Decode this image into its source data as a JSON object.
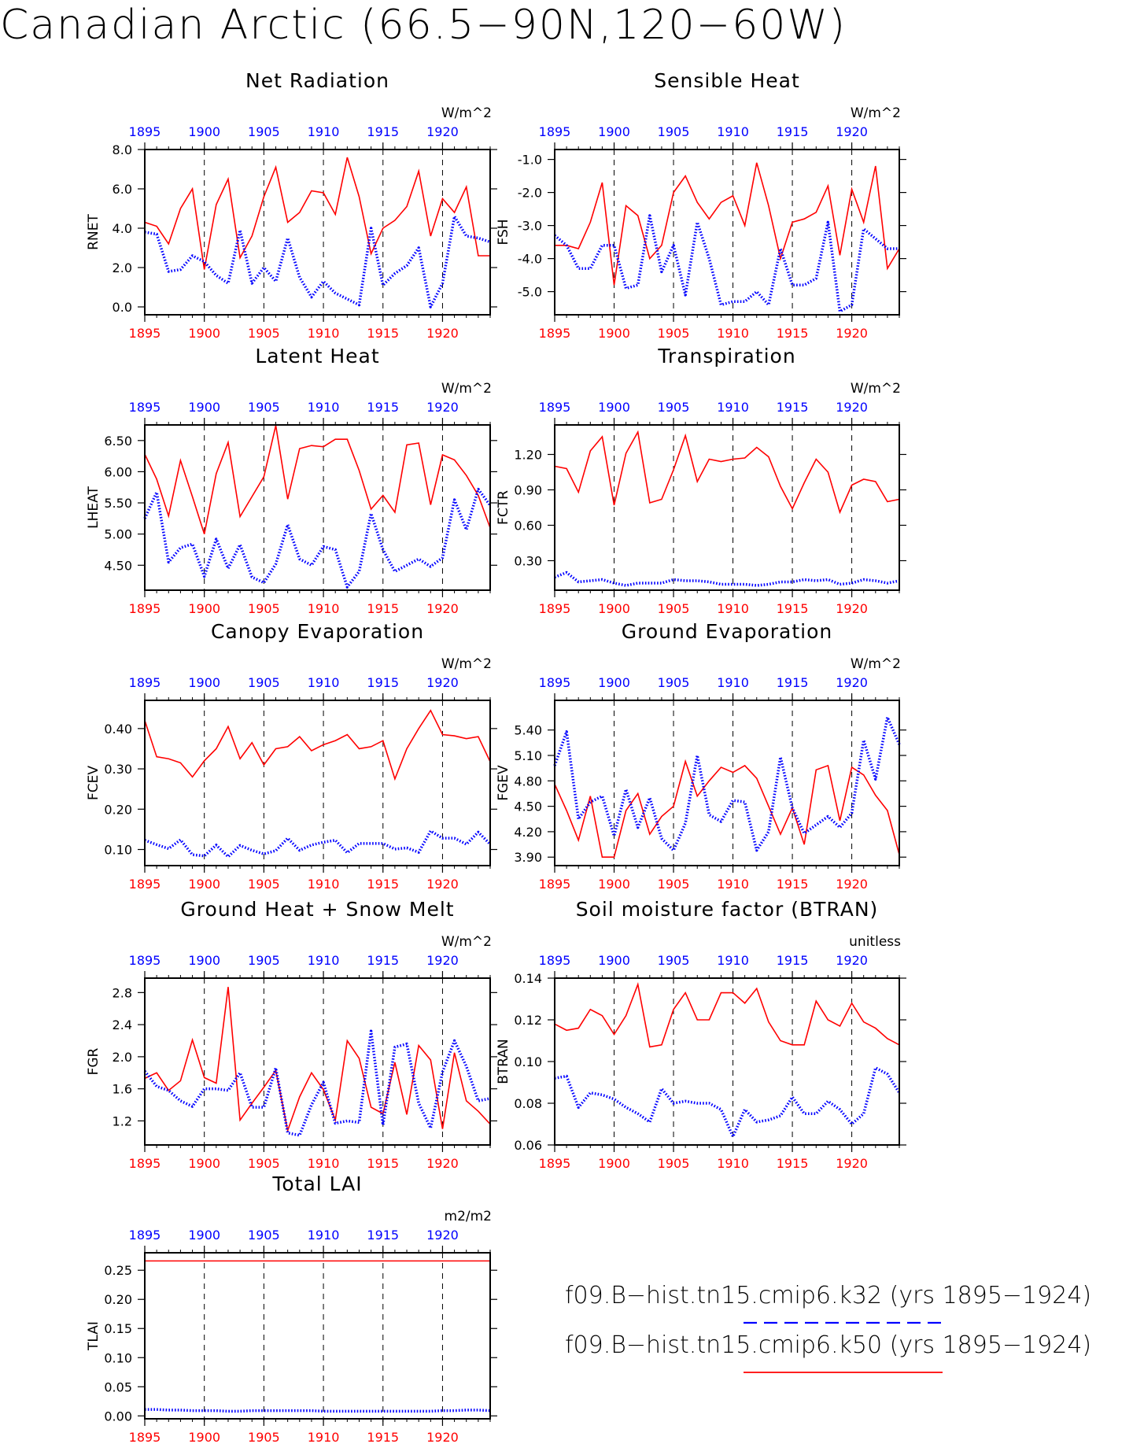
{
  "title": "Canadian Arctic (66.5−90N,120−60W)",
  "legend": [
    {
      "label": "f09.B−hist.tn15.cmip6.k32 (yrs 1895−1924)",
      "color": "#0000ff",
      "dash": true
    },
    {
      "label": "f09.B−hist.tn15.cmip6.k50 (yrs 1895−1924)",
      "color": "#ff0000",
      "dash": false
    }
  ],
  "colors": {
    "k32": "#0000ff",
    "k50": "#ff0000",
    "axis": "#000000"
  },
  "chart_data": [
    {
      "type": "line",
      "title": "Net Radiation",
      "ylabel": "RNET",
      "units": "W/m^2",
      "x": [
        1895,
        1896,
        1897,
        1898,
        1899,
        1900,
        1901,
        1902,
        1903,
        1904,
        1905,
        1906,
        1907,
        1908,
        1909,
        1910,
        1911,
        1912,
        1913,
        1914,
        1915,
        1916,
        1917,
        1918,
        1919,
        1920,
        1921,
        1922,
        1923,
        1924
      ],
      "xlim": [
        1895,
        1924
      ],
      "xticks": [
        1895,
        1900,
        1905,
        1910,
        1915,
        1920
      ],
      "ylim": [
        -0.4,
        8.0
      ],
      "yticks": [
        "0.0",
        "2.0",
        "4.0",
        "6.0",
        "8.0"
      ],
      "series": [
        {
          "name": "k32",
          "values": [
            3.8,
            3.7,
            1.8,
            1.9,
            2.6,
            2.3,
            1.6,
            1.2,
            3.9,
            1.2,
            2.0,
            1.3,
            3.5,
            1.5,
            0.5,
            1.3,
            0.7,
            0.4,
            0.1,
            4.0,
            1.1,
            1.7,
            2.1,
            3.0,
            0.0,
            1.2,
            4.6,
            3.6,
            3.5,
            3.3
          ]
        },
        {
          "name": "k50",
          "values": [
            4.3,
            4.1,
            3.2,
            5.0,
            6.0,
            1.9,
            5.2,
            6.5,
            2.5,
            3.6,
            5.6,
            7.1,
            4.3,
            4.8,
            5.9,
            5.8,
            4.7,
            7.6,
            5.6,
            2.7,
            4.0,
            4.4,
            5.1,
            6.9,
            3.6,
            5.5,
            4.8,
            6.1,
            2.6,
            2.6
          ]
        }
      ]
    },
    {
      "type": "line",
      "title": "Sensible Heat",
      "ylabel": "FSH",
      "units": "W/m^2",
      "x": [
        1895,
        1896,
        1897,
        1898,
        1899,
        1900,
        1901,
        1902,
        1903,
        1904,
        1905,
        1906,
        1907,
        1908,
        1909,
        1910,
        1911,
        1912,
        1913,
        1914,
        1915,
        1916,
        1917,
        1918,
        1919,
        1920,
        1921,
        1922,
        1923,
        1924
      ],
      "xlim": [
        1895,
        1924
      ],
      "xticks": [
        1895,
        1900,
        1905,
        1910,
        1915,
        1920
      ],
      "ylim": [
        -5.7,
        -0.7
      ],
      "yticks": [
        "-5.0",
        "-4.0",
        "-3.0",
        "-2.0",
        "-1.0"
      ],
      "series": [
        {
          "name": "k32",
          "values": [
            -3.3,
            -3.6,
            -4.3,
            -4.3,
            -3.6,
            -3.6,
            -4.9,
            -4.8,
            -2.7,
            -4.4,
            -3.6,
            -5.1,
            -2.9,
            -4.0,
            -5.4,
            -5.3,
            -5.3,
            -5.0,
            -5.4,
            -3.7,
            -4.8,
            -4.8,
            -4.6,
            -2.9,
            -5.6,
            -5.4,
            -3.1,
            -3.4,
            -3.7,
            -3.7
          ]
        },
        {
          "name": "k50",
          "values": [
            -3.6,
            -3.6,
            -3.7,
            -2.9,
            -1.7,
            -4.8,
            -2.4,
            -2.7,
            -4.0,
            -3.6,
            -2.0,
            -1.5,
            -2.3,
            -2.8,
            -2.3,
            -2.1,
            -3.0,
            -1.1,
            -2.4,
            -4.0,
            -2.9,
            -2.8,
            -2.6,
            -1.8,
            -3.9,
            -1.9,
            -2.9,
            -1.2,
            -4.3,
            -3.7
          ]
        }
      ]
    },
    {
      "type": "line",
      "title": "Latent Heat",
      "ylabel": "LHEAT",
      "units": "W/m^2",
      "x": [
        1895,
        1896,
        1897,
        1898,
        1899,
        1900,
        1901,
        1902,
        1903,
        1904,
        1905,
        1906,
        1907,
        1908,
        1909,
        1910,
        1911,
        1912,
        1913,
        1914,
        1915,
        1916,
        1917,
        1918,
        1919,
        1920,
        1921,
        1922,
        1923,
        1924
      ],
      "xlim": [
        1895,
        1924
      ],
      "xticks": [
        1895,
        1900,
        1905,
        1910,
        1915,
        1920
      ],
      "ylim": [
        4.1,
        6.75
      ],
      "yticks": [
        "4.50",
        "5.00",
        "5.50",
        "6.00",
        "6.50"
      ],
      "series": [
        {
          "name": "k32",
          "values": [
            5.25,
            5.67,
            4.55,
            4.78,
            4.84,
            4.32,
            4.92,
            4.45,
            4.83,
            4.31,
            4.22,
            4.52,
            5.15,
            4.6,
            4.5,
            4.8,
            4.75,
            4.15,
            4.4,
            5.33,
            4.75,
            4.4,
            4.5,
            4.6,
            4.48,
            4.62,
            5.55,
            5.07,
            5.72,
            5.46
          ]
        },
        {
          "name": "k50",
          "values": [
            6.28,
            5.88,
            5.29,
            6.18,
            5.6,
            5.0,
            5.97,
            6.47,
            5.28,
            5.6,
            5.92,
            6.74,
            5.56,
            6.37,
            6.42,
            6.4,
            6.52,
            6.52,
            6.02,
            5.4,
            5.62,
            5.35,
            6.43,
            6.46,
            5.47,
            6.27,
            6.19,
            5.94,
            5.62,
            5.1
          ]
        }
      ]
    },
    {
      "type": "line",
      "title": "Transpiration",
      "ylabel": "FCTR",
      "units": "W/m^2",
      "x": [
        1895,
        1896,
        1897,
        1898,
        1899,
        1900,
        1901,
        1902,
        1903,
        1904,
        1905,
        1906,
        1907,
        1908,
        1909,
        1910,
        1911,
        1912,
        1913,
        1914,
        1915,
        1916,
        1917,
        1918,
        1919,
        1920,
        1921,
        1922,
        1923,
        1924
      ],
      "xlim": [
        1895,
        1924
      ],
      "xticks": [
        1895,
        1900,
        1905,
        1910,
        1915,
        1920
      ],
      "ylim": [
        0.05,
        1.45
      ],
      "yticks": [
        "0.30",
        "0.60",
        "0.90",
        "1.20"
      ],
      "series": [
        {
          "name": "k32",
          "values": [
            0.16,
            0.2,
            0.12,
            0.13,
            0.14,
            0.11,
            0.09,
            0.11,
            0.11,
            0.11,
            0.14,
            0.13,
            0.13,
            0.12,
            0.1,
            0.1,
            0.1,
            0.09,
            0.1,
            0.12,
            0.12,
            0.14,
            0.13,
            0.14,
            0.1,
            0.11,
            0.14,
            0.13,
            0.11,
            0.13
          ]
        },
        {
          "name": "k50",
          "values": [
            1.1,
            1.08,
            0.88,
            1.23,
            1.35,
            0.77,
            1.21,
            1.39,
            0.79,
            0.82,
            1.07,
            1.36,
            0.97,
            1.16,
            1.14,
            1.16,
            1.17,
            1.26,
            1.18,
            0.93,
            0.74,
            0.96,
            1.16,
            1.05,
            0.71,
            0.94,
            0.99,
            0.97,
            0.8,
            0.82
          ]
        }
      ]
    },
    {
      "type": "line",
      "title": "Canopy Evaporation",
      "ylabel": "FCEV",
      "units": "W/m^2",
      "x": [
        1895,
        1896,
        1897,
        1898,
        1899,
        1900,
        1901,
        1902,
        1903,
        1904,
        1905,
        1906,
        1907,
        1908,
        1909,
        1910,
        1911,
        1912,
        1913,
        1914,
        1915,
        1916,
        1917,
        1918,
        1919,
        1920,
        1921,
        1922,
        1923,
        1924
      ],
      "xlim": [
        1895,
        1924
      ],
      "xticks": [
        1895,
        1900,
        1905,
        1910,
        1915,
        1920
      ],
      "ylim": [
        0.06,
        0.47
      ],
      "yticks": [
        "0.10",
        "0.20",
        "0.30",
        "0.40"
      ],
      "series": [
        {
          "name": "k32",
          "values": [
            0.123,
            0.112,
            0.102,
            0.124,
            0.087,
            0.084,
            0.111,
            0.082,
            0.11,
            0.098,
            0.089,
            0.097,
            0.128,
            0.098,
            0.111,
            0.118,
            0.123,
            0.092,
            0.115,
            0.115,
            0.115,
            0.101,
            0.104,
            0.093,
            0.146,
            0.128,
            0.128,
            0.113,
            0.143,
            0.113
          ]
        },
        {
          "name": "k50",
          "values": [
            0.42,
            0.33,
            0.325,
            0.315,
            0.28,
            0.32,
            0.35,
            0.405,
            0.325,
            0.365,
            0.31,
            0.35,
            0.355,
            0.38,
            0.345,
            0.36,
            0.37,
            0.385,
            0.35,
            0.355,
            0.37,
            0.275,
            0.35,
            0.4,
            0.445,
            0.385,
            0.382,
            0.375,
            0.38,
            0.318
          ]
        }
      ]
    },
    {
      "type": "line",
      "title": "Ground Evaporation",
      "ylabel": "FGEV",
      "units": "W/m^2",
      "x": [
        1895,
        1896,
        1897,
        1898,
        1899,
        1900,
        1901,
        1902,
        1903,
        1904,
        1905,
        1906,
        1907,
        1908,
        1909,
        1910,
        1911,
        1912,
        1913,
        1914,
        1915,
        1916,
        1917,
        1918,
        1919,
        1920,
        1921,
        1922,
        1923,
        1924
      ],
      "xlim": [
        1895,
        1924
      ],
      "xticks": [
        1895,
        1900,
        1905,
        1910,
        1915,
        1920
      ],
      "ylim": [
        3.8,
        5.75
      ],
      "yticks": [
        "3.90",
        "4.20",
        "4.50",
        "4.80",
        "5.10",
        "5.40"
      ],
      "series": [
        {
          "name": "k32",
          "values": [
            4.98,
            5.38,
            4.35,
            4.55,
            4.62,
            4.15,
            4.7,
            4.25,
            4.6,
            4.12,
            3.98,
            4.3,
            5.1,
            4.4,
            4.32,
            4.57,
            4.55,
            3.98,
            4.2,
            5.08,
            4.48,
            4.18,
            4.28,
            4.38,
            4.25,
            4.42,
            5.28,
            4.82,
            5.55,
            5.23
          ]
        },
        {
          "name": "k50",
          "values": [
            4.76,
            4.45,
            4.1,
            4.62,
            3.9,
            3.9,
            4.45,
            4.65,
            4.17,
            4.38,
            4.5,
            5.03,
            4.62,
            4.8,
            4.96,
            4.9,
            4.98,
            4.83,
            4.5,
            4.17,
            4.48,
            4.05,
            4.93,
            4.98,
            4.33,
            4.96,
            4.87,
            4.63,
            4.45,
            3.93
          ]
        }
      ]
    },
    {
      "type": "line",
      "title": "Ground Heat + Snow Melt",
      "ylabel": "FGR",
      "units": "W/m^2",
      "x": [
        1895,
        1896,
        1897,
        1898,
        1899,
        1900,
        1901,
        1902,
        1903,
        1904,
        1905,
        1906,
        1907,
        1908,
        1909,
        1910,
        1911,
        1912,
        1913,
        1914,
        1915,
        1916,
        1917,
        1918,
        1919,
        1920,
        1921,
        1922,
        1923,
        1924
      ],
      "xlim": [
        1895,
        1924
      ],
      "xticks": [
        1895,
        1900,
        1905,
        1910,
        1915,
        1920
      ],
      "ylim": [
        0.9,
        2.98
      ],
      "yticks": [
        "1.2",
        "1.6",
        "2.0",
        "2.4",
        "2.8"
      ],
      "series": [
        {
          "name": "k32",
          "values": [
            1.82,
            1.63,
            1.58,
            1.45,
            1.38,
            1.6,
            1.6,
            1.58,
            1.8,
            1.37,
            1.37,
            1.86,
            1.05,
            1.02,
            1.4,
            1.68,
            1.17,
            1.2,
            1.18,
            2.32,
            1.15,
            2.12,
            2.16,
            1.42,
            1.11,
            1.81,
            2.2,
            1.88,
            1.45,
            1.48
          ]
        },
        {
          "name": "k50",
          "values": [
            1.73,
            1.8,
            1.58,
            1.7,
            2.21,
            1.74,
            1.67,
            2.87,
            1.21,
            1.42,
            1.62,
            1.83,
            1.08,
            1.5,
            1.8,
            1.59,
            1.21,
            2.2,
            1.98,
            1.37,
            1.29,
            1.93,
            1.28,
            2.14,
            1.96,
            1.1,
            2.05,
            1.45,
            1.32,
            1.16
          ]
        }
      ]
    },
    {
      "type": "line",
      "title": "Soil moisture factor (BTRAN)",
      "ylabel": "BTRAN",
      "units": "unitless",
      "x": [
        1895,
        1896,
        1897,
        1898,
        1899,
        1900,
        1901,
        1902,
        1903,
        1904,
        1905,
        1906,
        1907,
        1908,
        1909,
        1910,
        1911,
        1912,
        1913,
        1914,
        1915,
        1916,
        1917,
        1918,
        1919,
        1920,
        1921,
        1922,
        1923,
        1924
      ],
      "xlim": [
        1895,
        1924
      ],
      "xticks": [
        1895,
        1900,
        1905,
        1910,
        1915,
        1920
      ],
      "ylim": [
        0.06,
        0.14
      ],
      "yticks": [
        "0.06",
        "0.08",
        "0.10",
        "0.12",
        "0.14"
      ],
      "series": [
        {
          "name": "k32",
          "values": [
            0.092,
            0.093,
            0.078,
            0.085,
            0.084,
            0.082,
            0.078,
            0.075,
            0.071,
            0.087,
            0.08,
            0.081,
            0.08,
            0.08,
            0.077,
            0.064,
            0.077,
            0.071,
            0.072,
            0.074,
            0.083,
            0.075,
            0.075,
            0.081,
            0.077,
            0.07,
            0.075,
            0.097,
            0.094,
            0.085
          ]
        },
        {
          "name": "k50",
          "values": [
            0.118,
            0.115,
            0.116,
            0.125,
            0.122,
            0.113,
            0.122,
            0.137,
            0.107,
            0.108,
            0.125,
            0.133,
            0.12,
            0.12,
            0.133,
            0.133,
            0.128,
            0.135,
            0.119,
            0.11,
            0.108,
            0.108,
            0.129,
            0.12,
            0.117,
            0.128,
            0.119,
            0.116,
            0.111,
            0.108
          ]
        }
      ]
    },
    {
      "type": "line",
      "title": "Total LAI",
      "ylabel": "TLAI",
      "units": "m2/m2",
      "x": [
        1895,
        1896,
        1897,
        1898,
        1899,
        1900,
        1901,
        1902,
        1903,
        1904,
        1905,
        1906,
        1907,
        1908,
        1909,
        1910,
        1911,
        1912,
        1913,
        1914,
        1915,
        1916,
        1917,
        1918,
        1919,
        1920,
        1921,
        1922,
        1923,
        1924
      ],
      "xlim": [
        1895,
        1924
      ],
      "xticks": [
        1895,
        1900,
        1905,
        1910,
        1915,
        1920
      ],
      "ylim": [
        -0.005,
        0.28
      ],
      "yticks": [
        "0.00",
        "0.05",
        "0.10",
        "0.15",
        "0.20",
        "0.25"
      ],
      "series": [
        {
          "name": "k32",
          "values": [
            0.011,
            0.011,
            0.01,
            0.01,
            0.009,
            0.009,
            0.009,
            0.008,
            0.008,
            0.009,
            0.009,
            0.009,
            0.009,
            0.009,
            0.009,
            0.008,
            0.008,
            0.008,
            0.008,
            0.008,
            0.008,
            0.008,
            0.008,
            0.008,
            0.008,
            0.009,
            0.009,
            0.01,
            0.01,
            0.009
          ]
        },
        {
          "name": "k50",
          "values": [
            0.266,
            0.266,
            0.266,
            0.266,
            0.266,
            0.266,
            0.266,
            0.266,
            0.266,
            0.266,
            0.266,
            0.266,
            0.266,
            0.266,
            0.266,
            0.266,
            0.266,
            0.266,
            0.266,
            0.266,
            0.266,
            0.266,
            0.266,
            0.266,
            0.266,
            0.266,
            0.266,
            0.266,
            0.266,
            0.266
          ]
        }
      ]
    }
  ]
}
